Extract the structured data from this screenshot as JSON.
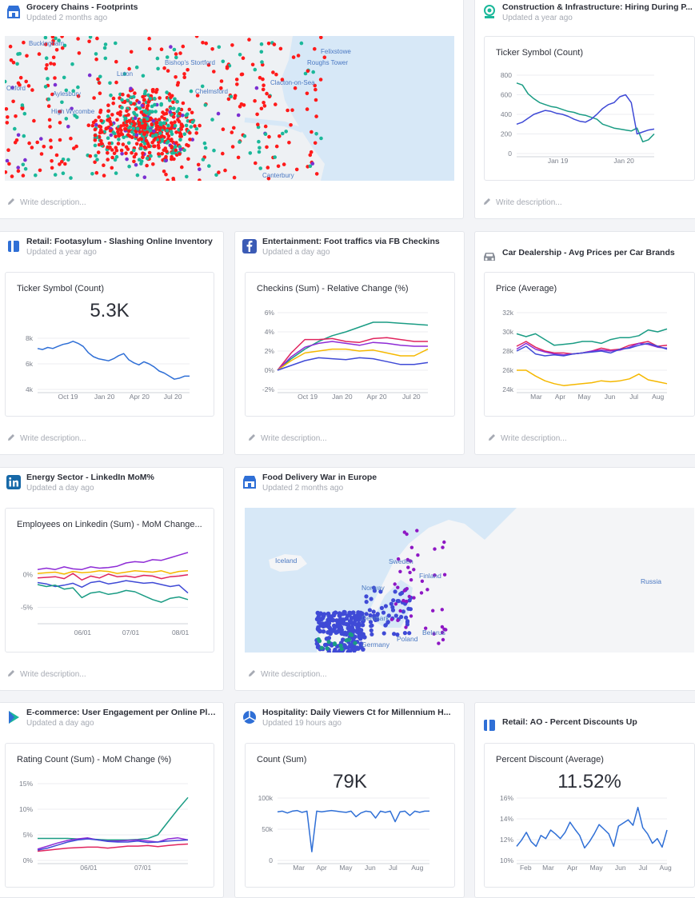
{
  "cards": {
    "grocery": {
      "title": "Grocery Chains - Footprints",
      "subtitle": "Updated 2 months ago",
      "map_labels": [
        "Buckingham",
        "Felixstowe",
        "Roughs Tower",
        "Bishop's Stortford",
        "Clacton-on-Sea",
        "Chelmsford",
        "Oxford",
        "High Wycombe",
        "Canterbury",
        "Aylesbury",
        "Luton"
      ],
      "colors": {
        "red": "#ff1a1a",
        "teal": "#1bb89a",
        "purple": "#7b2fd1"
      }
    },
    "construction": {
      "title": "Construction & Infrastructure: Hiring During P...",
      "subtitle": "Updated a year ago",
      "panel_title": "Ticker Symbol (Count)"
    },
    "footasylum": {
      "title": "Retail: Footasylum - Slashing Online Inventory",
      "subtitle": "Updated a year ago",
      "panel_title": "Ticker Symbol (Count)",
      "big_number": "5.3K"
    },
    "entertainment": {
      "title": "Entertainment: Foot traffics via FB Checkins",
      "subtitle": "Updated a day ago",
      "panel_title": "Checkins (Sum) - Relative Change (%)"
    },
    "car": {
      "title": "Car Dealership - Avg Prices per Car Brands",
      "panel_title": "Price (Average)"
    },
    "energy": {
      "title": "Energy Sector - LinkedIn MoM%",
      "subtitle": "Updated a day ago",
      "panel_title": "Employees on Linkedin (Sum) - MoM Change..."
    },
    "food": {
      "title": "Food Delivery War in Europe",
      "subtitle": "Updated 2 months ago",
      "map_labels": [
        "Iceland",
        "Sweden",
        "Finland",
        "Norway",
        "Denmark",
        "Belarus",
        "Poland",
        "Russia",
        "Germany"
      ]
    },
    "ecommerce": {
      "title": "E-commerce: User Engagement per Online Pla...",
      "subtitle": "Updated a day ago",
      "panel_title": "Rating Count (Sum) - MoM Change (%)"
    },
    "hospitality": {
      "title": "Hospitality: Daily Viewers Ct for Millennium H...",
      "subtitle": "Updated 19 hours ago",
      "panel_title": "Count (Sum)",
      "big_number": "79K"
    },
    "ao": {
      "title": "Retail: AO - Percent Discounts Up",
      "panel_title": "Percent Discount (Average)",
      "big_number": "11.52%"
    }
  },
  "description_placeholder": "Write description...",
  "chart_data": [
    {
      "id": "construction",
      "type": "line",
      "xlim": [
        0,
        1
      ],
      "ylim": [
        0,
        800
      ],
      "y_ticks": [
        "800",
        "600",
        "400",
        "200",
        "0"
      ],
      "x_ticks": [
        "Jan 19",
        "Jan 20"
      ],
      "series": [
        {
          "color": "#1a9c84",
          "values": [
            720,
            700,
            610,
            560,
            520,
            500,
            480,
            470,
            450,
            430,
            420,
            400,
            390,
            370,
            350,
            300,
            280,
            260,
            250,
            240,
            230,
            260,
            120,
            140,
            200
          ]
        },
        {
          "color": "#3f4ad6",
          "values": [
            300,
            320,
            360,
            400,
            420,
            440,
            430,
            410,
            400,
            380,
            350,
            330,
            320,
            350,
            400,
            460,
            500,
            520,
            580,
            600,
            520,
            200,
            220,
            240,
            250
          ]
        }
      ]
    },
    {
      "id": "footasylum",
      "type": "line",
      "ylim": [
        4000,
        9000
      ],
      "y_ticks": [
        "8k",
        "6k",
        "4k"
      ],
      "x_ticks": [
        "Oct 19",
        "Jan 20",
        "Apr 20",
        "Jul 20"
      ],
      "series": [
        {
          "color": "#2f6fd6",
          "values": [
            8000,
            7900,
            8100,
            8000,
            8200,
            8400,
            8500,
            8700,
            8500,
            8200,
            7600,
            7200,
            7000,
            6900,
            6800,
            7000,
            7300,
            7500,
            6900,
            6600,
            6400,
            6700,
            6500,
            6200,
            5800,
            5600,
            5300,
            5000,
            5100,
            5300,
            5300
          ]
        }
      ]
    },
    {
      "id": "entertainment",
      "type": "line",
      "ylim": [
        -2,
        6
      ],
      "y_ticks": [
        "6%",
        "4%",
        "2%",
        "0%",
        "-2%"
      ],
      "x_ticks": [
        "Oct 19",
        "Jan 20",
        "Apr 20",
        "Jul 20"
      ],
      "series": [
        {
          "color": "#1a9c84",
          "values": [
            0,
            1.2,
            2.2,
            3.0,
            3.6,
            4.0,
            4.5,
            5.0,
            5.0,
            4.9,
            4.8,
            4.7
          ]
        },
        {
          "color": "#e0245e",
          "values": [
            0,
            1.8,
            3.2,
            3.2,
            3.3,
            3.0,
            2.9,
            3.3,
            3.4,
            3.2,
            3.0,
            3.0
          ]
        },
        {
          "color": "#8e2bd6",
          "values": [
            0,
            1.4,
            2.4,
            2.8,
            3.0,
            2.8,
            2.6,
            2.9,
            2.8,
            2.6,
            2.5,
            2.5
          ]
        },
        {
          "color": "#f5b800",
          "values": [
            0,
            1.0,
            1.8,
            2.0,
            2.2,
            2.2,
            2.0,
            2.1,
            1.8,
            1.5,
            1.5,
            2.2
          ]
        },
        {
          "color": "#3f4ad6",
          "values": [
            0,
            0.5,
            1.0,
            1.3,
            1.2,
            1.1,
            1.3,
            1.2,
            0.9,
            0.6,
            0.6,
            0.8
          ]
        }
      ]
    },
    {
      "id": "car",
      "type": "line",
      "ylim": [
        24000,
        32000
      ],
      "y_ticks": [
        "32k",
        "30k",
        "28k",
        "26k",
        "24k"
      ],
      "x_ticks": [
        "Mar",
        "Apr",
        "May",
        "Jun",
        "Jul",
        "Aug"
      ],
      "series": [
        {
          "color": "#1a9c84",
          "values": [
            29800,
            29500,
            29800,
            29200,
            28600,
            28700,
            28800,
            29000,
            29000,
            28800,
            29200,
            29400,
            29400,
            29600,
            30200,
            30000,
            30300
          ]
        },
        {
          "color": "#e0245e",
          "values": [
            28500,
            29000,
            28400,
            28000,
            27800,
            27800,
            27700,
            27800,
            28000,
            28300,
            28100,
            28200,
            28600,
            28800,
            29000,
            28500,
            28600
          ]
        },
        {
          "color": "#8e2bd6",
          "values": [
            28200,
            28800,
            28200,
            27900,
            27700,
            27600,
            27700,
            27800,
            28000,
            28100,
            28000,
            28100,
            28400,
            28800,
            28700,
            28400,
            28300
          ]
        },
        {
          "color": "#3f4ad6",
          "values": [
            28000,
            28500,
            27700,
            27500,
            27600,
            27500,
            27700,
            27800,
            27900,
            28000,
            27800,
            28200,
            28300,
            28600,
            28800,
            28500,
            28200
          ]
        },
        {
          "color": "#f5b800",
          "values": [
            26000,
            26000,
            25400,
            24900,
            24600,
            24400,
            24500,
            24600,
            24700,
            24900,
            24800,
            24900,
            25100,
            25600,
            25000,
            24800,
            24600
          ]
        }
      ]
    },
    {
      "id": "energy",
      "type": "line",
      "ylim": [
        -7,
        4
      ],
      "y_ticks": [
        "0%",
        "-5%"
      ],
      "x_ticks": [
        "06/01",
        "07/01",
        "08/01"
      ],
      "series": [
        {
          "color": "#8e2bd6",
          "values": [
            0.8,
            1.0,
            0.8,
            1.2,
            0.9,
            0.8,
            1.2,
            1.0,
            1.1,
            1.3,
            1.8,
            2.0,
            1.9,
            2.3,
            2.2,
            2.6,
            3.0,
            3.4
          ]
        },
        {
          "color": "#f5b800",
          "values": [
            0.2,
            0.3,
            0.4,
            0.1,
            0.5,
            0.3,
            0.4,
            0.6,
            0.5,
            0.2,
            0.4,
            0.6,
            0.5,
            0.4,
            0.6,
            0.2,
            0.5,
            0.6
          ]
        },
        {
          "color": "#e0245e",
          "values": [
            -0.5,
            -0.4,
            -0.3,
            -0.6,
            0.2,
            -0.8,
            -0.2,
            -0.5,
            0.1,
            -0.3,
            -0.2,
            -0.4,
            -0.1,
            -0.2,
            -0.6,
            -0.3,
            -0.2,
            0.0
          ]
        },
        {
          "color": "#3f4ad6",
          "values": [
            -1.2,
            -1.4,
            -1.8,
            -1.6,
            -1.3,
            -1.9,
            -1.2,
            -1.0,
            -1.4,
            -1.2,
            -0.9,
            -1.1,
            -1.3,
            -1.2,
            -1.5,
            -1.8,
            -1.6,
            -2.8
          ]
        },
        {
          "color": "#1a9c84",
          "values": [
            -1.5,
            -1.8,
            -1.6,
            -2.2,
            -2.0,
            -3.5,
            -2.8,
            -2.6,
            -3.0,
            -2.8,
            -2.4,
            -2.6,
            -3.2,
            -3.8,
            -4.2,
            -3.6,
            -3.4,
            -3.8
          ]
        }
      ]
    },
    {
      "id": "ecommerce",
      "type": "line",
      "ylim": [
        0,
        15
      ],
      "y_ticks": [
        "15%",
        "10%",
        "5%",
        "0%"
      ],
      "x_ticks": [
        "06/01",
        "07/01"
      ],
      "series": [
        {
          "color": "#1a9c84",
          "values": [
            4.3,
            4.3,
            4.3,
            4.3,
            4.2,
            4.2,
            4.1,
            4.0,
            4.0,
            4.0,
            4.1,
            4.3,
            5.0,
            7.5,
            10.0,
            12.3
          ]
        },
        {
          "color": "#8e2bd6",
          "values": [
            2.2,
            2.8,
            3.4,
            3.9,
            4.2,
            4.4,
            4.0,
            3.8,
            3.8,
            3.9,
            4.0,
            3.8,
            3.6,
            4.2,
            4.4,
            4.0
          ]
        },
        {
          "color": "#3f4ad6",
          "values": [
            2.0,
            2.4,
            3.0,
            3.6,
            4.0,
            4.2,
            4.0,
            3.7,
            3.6,
            3.6,
            3.8,
            3.5,
            3.6,
            3.8,
            3.9,
            4.0
          ]
        },
        {
          "color": "#e0245e",
          "values": [
            1.8,
            2.0,
            2.2,
            2.4,
            2.5,
            2.6,
            2.6,
            2.4,
            2.6,
            2.8,
            2.8,
            2.9,
            2.7,
            2.9,
            3.1,
            3.2
          ]
        }
      ]
    },
    {
      "id": "hospitality",
      "type": "line",
      "ylim": [
        0,
        100000
      ],
      "y_ticks": [
        "100k",
        "50k",
        "0"
      ],
      "x_ticks": [
        "Mar",
        "Apr",
        "May",
        "Jun",
        "Jul",
        "Aug"
      ],
      "series": [
        {
          "color": "#2f6fd6",
          "values": [
            78000,
            79000,
            76000,
            79000,
            80000,
            77000,
            79000,
            14000,
            79000,
            78000,
            79000,
            80000,
            79000,
            78000,
            77000,
            79000,
            70000,
            76000,
            79000,
            78000,
            68000,
            79000,
            77000,
            79000,
            62000,
            78000,
            79000,
            72000,
            79000,
            77000,
            79000,
            79000
          ]
        }
      ]
    },
    {
      "id": "ao",
      "type": "line",
      "ylim": [
        8,
        16
      ],
      "y_ticks": [
        "16%",
        "14%",
        "12%",
        "10%"
      ],
      "x_ticks": [
        "Feb",
        "Mar",
        "Apr",
        "May",
        "Jun",
        "Jul",
        "Aug"
      ],
      "series": [
        {
          "color": "#2f6fd6",
          "values": [
            9.8,
            10.6,
            11.6,
            10.4,
            9.8,
            11.2,
            10.8,
            11.9,
            11.4,
            10.8,
            11.6,
            12.9,
            12.0,
            11.2,
            9.6,
            10.4,
            11.4,
            12.6,
            12.0,
            11.4,
            9.8,
            12.4,
            12.8,
            13.2,
            12.5,
            14.8,
            12.2,
            11.4,
            10.2,
            10.8,
            9.7,
            11.9
          ]
        }
      ]
    }
  ]
}
